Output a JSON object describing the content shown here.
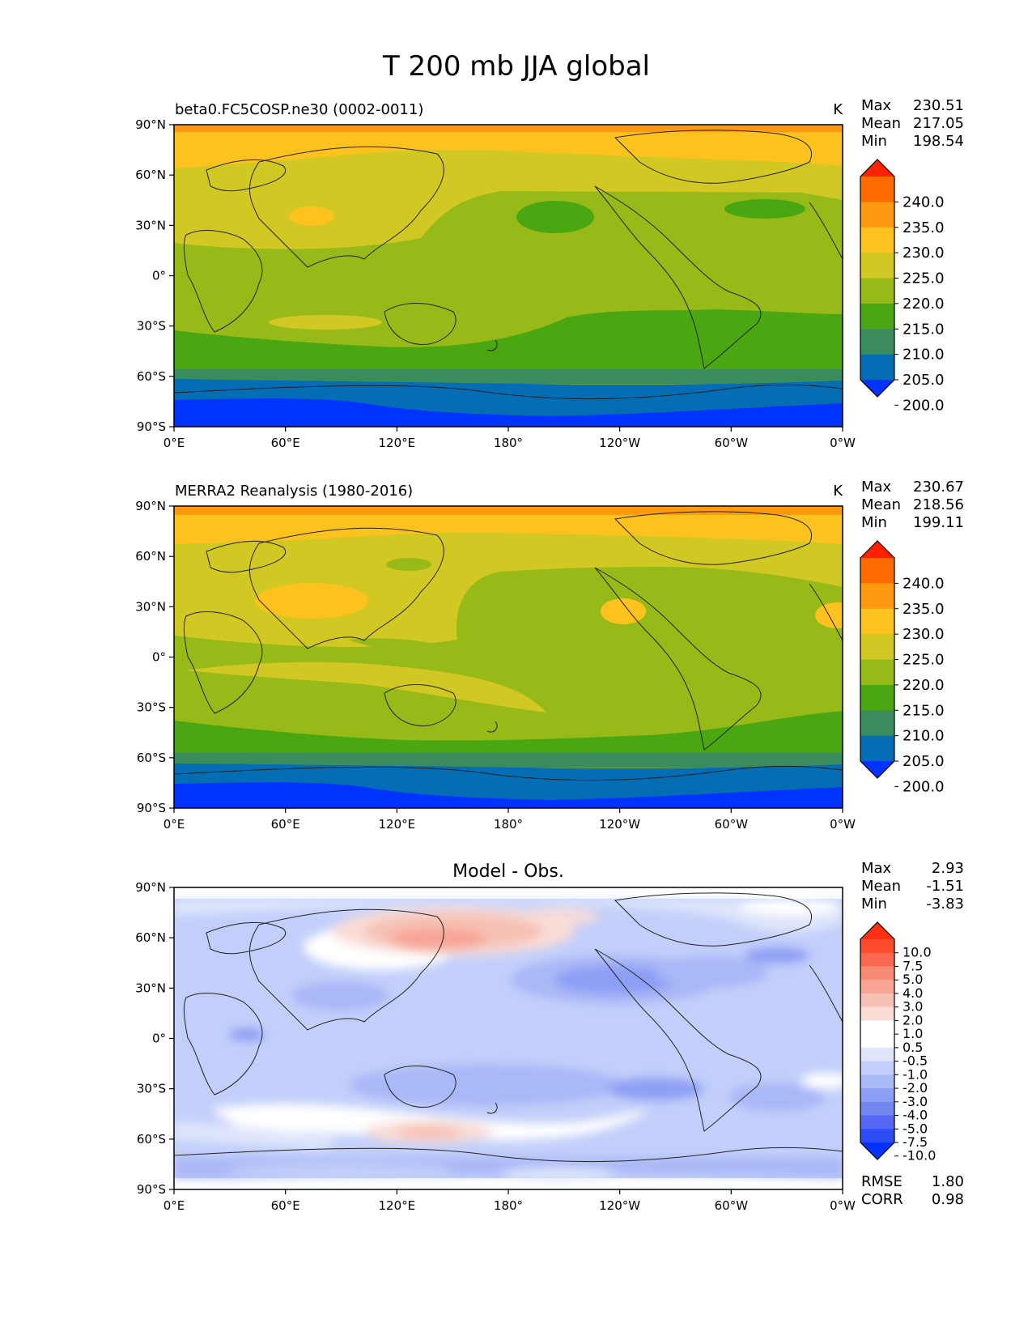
{
  "title": "T 200 mb JJA global",
  "x_ticks": [
    "0°E",
    "60°E",
    "120°E",
    "180°",
    "120°W",
    "60°W",
    "0°W"
  ],
  "y_ticks": [
    "90°N",
    "60°N",
    "30°N",
    "0°",
    "30°S",
    "60°S",
    "90°S"
  ],
  "panels": [
    {
      "id": "test",
      "left_title": "beta0.FC5COSP.ne30 (0002-0011)",
      "center_title": "",
      "units": "K",
      "stats": [
        {
          "label": "Max",
          "value": "230.51"
        },
        {
          "label": "Mean",
          "value": "217.05"
        },
        {
          "label": "Min",
          "value": "198.54"
        }
      ],
      "colorbar_labels": [
        "240.0",
        "235.0",
        "230.0",
        "225.0",
        "220.0",
        "215.0",
        "210.0",
        "205.0",
        "200.0"
      ],
      "colorbar_colors": [
        "#ff2200",
        "#ff6a00",
        "#ff9a10",
        "#fdc21e",
        "#d2c823",
        "#98ba18",
        "#4aa712",
        "#3a8c5c",
        "#046db4",
        "#0033ff"
      ],
      "extra_stats": []
    },
    {
      "id": "reference",
      "left_title": "MERRA2 Reanalysis (1980-2016)",
      "center_title": "",
      "units": "K",
      "stats": [
        {
          "label": "Max",
          "value": "230.67"
        },
        {
          "label": "Mean",
          "value": "218.56"
        },
        {
          "label": "Min",
          "value": "199.11"
        }
      ],
      "colorbar_labels": [
        "240.0",
        "235.0",
        "230.0",
        "225.0",
        "220.0",
        "215.0",
        "210.0",
        "205.0",
        "200.0"
      ],
      "colorbar_colors": [
        "#ff2200",
        "#ff6a00",
        "#ff9a10",
        "#fdc21e",
        "#d2c823",
        "#98ba18",
        "#4aa712",
        "#3a8c5c",
        "#046db4",
        "#0033ff"
      ],
      "extra_stats": []
    },
    {
      "id": "difference",
      "left_title": "",
      "center_title": "Model - Obs.",
      "units": "",
      "stats": [
        {
          "label": "Max",
          "value": "2.93"
        },
        {
          "label": "Mean",
          "value": "-1.51"
        },
        {
          "label": "Min",
          "value": "-3.83"
        }
      ],
      "colorbar_labels": [
        "10.0",
        "7.5",
        "5.0",
        "4.0",
        "3.0",
        "2.0",
        "1.0",
        "0.5",
        "-0.5",
        "-1.0",
        "-2.0",
        "-3.0",
        "-4.0",
        "-5.0",
        "-7.5",
        "-10.0"
      ],
      "colorbar_colors": [
        "#ff3010",
        "#ff4a30",
        "#fb6a50",
        "#f98a74",
        "#f7a696",
        "#f7c0b4",
        "#f9dcd6",
        "#ffffff",
        "#ffffff",
        "#dfe6fb",
        "#c3cffa",
        "#a9b8f7",
        "#8d9ff4",
        "#7286f2",
        "#5468f3",
        "#2c4bf4",
        "#0033ff"
      ],
      "extra_stats": [
        {
          "label": "RMSE",
          "value": "1.80"
        },
        {
          "label": "CORR",
          "value": "0.98"
        }
      ]
    }
  ]
}
